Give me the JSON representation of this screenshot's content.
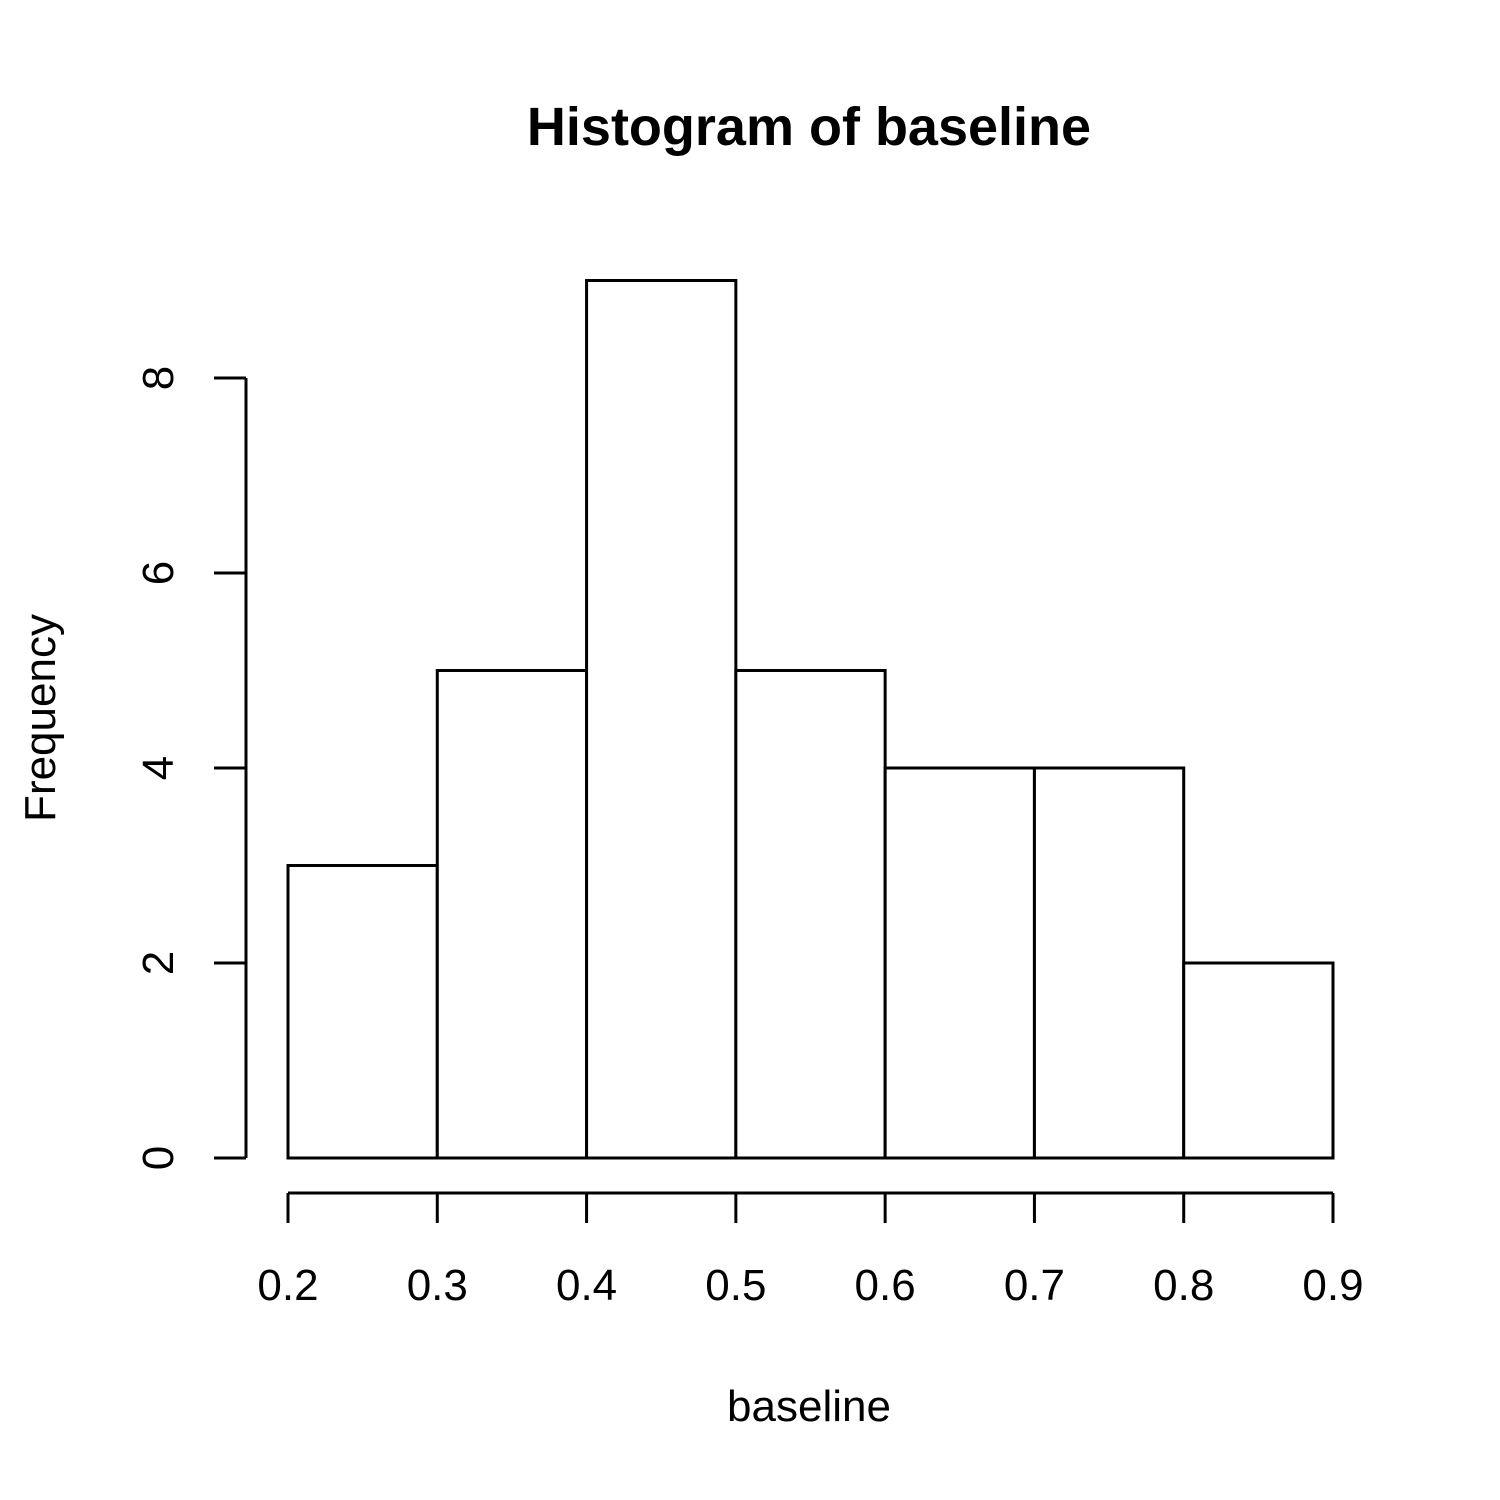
{
  "chart_data": {
    "type": "bar",
    "title": "Histogram of baseline",
    "xlabel": "baseline",
    "ylabel": "Frequency",
    "bins": [
      {
        "start": 0.2,
        "end": 0.3,
        "count": 3
      },
      {
        "start": 0.3,
        "end": 0.4,
        "count": 5
      },
      {
        "start": 0.4,
        "end": 0.5,
        "count": 9
      },
      {
        "start": 0.5,
        "end": 0.6,
        "count": 5
      },
      {
        "start": 0.6,
        "end": 0.7,
        "count": 4
      },
      {
        "start": 0.7,
        "end": 0.8,
        "count": 4
      },
      {
        "start": 0.8,
        "end": 0.9,
        "count": 2
      }
    ],
    "xlim": [
      0.2,
      0.9
    ],
    "ylim": [
      0,
      9
    ],
    "x_ticks": [
      "0.2",
      "0.3",
      "0.4",
      "0.5",
      "0.6",
      "0.7",
      "0.8",
      "0.9"
    ],
    "y_ticks": [
      "0",
      "2",
      "4",
      "6",
      "8"
    ],
    "grid": false,
    "colors": {
      "bar_fill": "#ffffff",
      "bar_stroke": "#000000"
    }
  }
}
